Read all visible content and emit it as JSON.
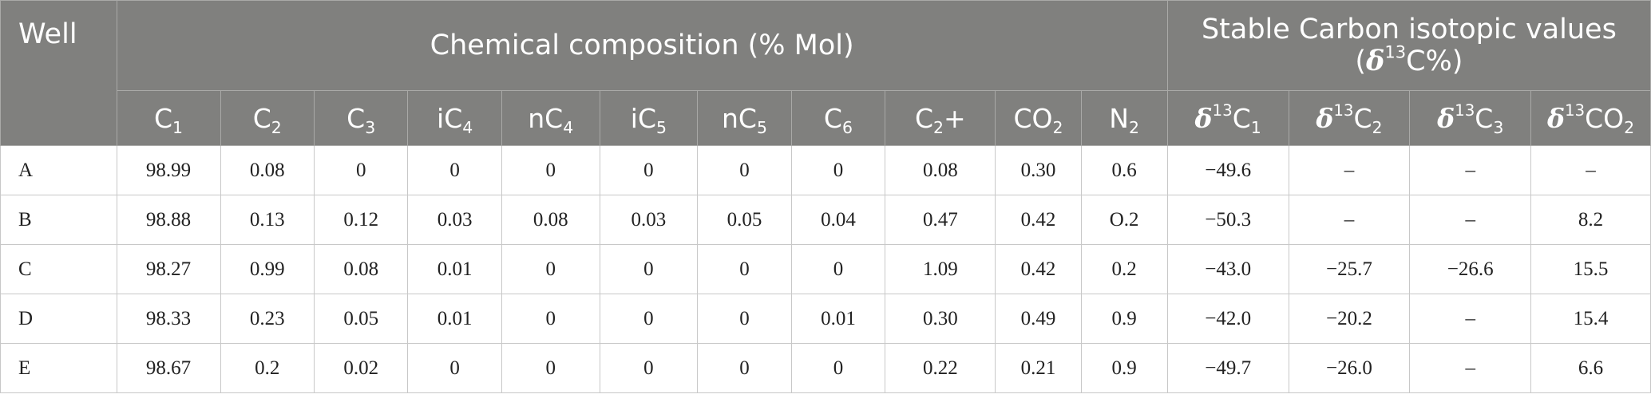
{
  "header": {
    "well": "Well",
    "chemical_group": "Chemical composition (% Mol)",
    "isotope_group_line1": "Stable Carbon isotopic values",
    "isotope_open": "(",
    "isotope_delta": "δ",
    "isotope_sup": "13",
    "isotope_rest": "C%)",
    "columns": [
      {
        "pre": "C",
        "sub": "1",
        "post": ""
      },
      {
        "pre": "C",
        "sub": "2",
        "post": ""
      },
      {
        "pre": "C",
        "sub": "3",
        "post": ""
      },
      {
        "pre": "iC",
        "sub": "4",
        "post": ""
      },
      {
        "pre": "nC",
        "sub": "4",
        "post": ""
      },
      {
        "pre": "iC",
        "sub": "5",
        "post": ""
      },
      {
        "pre": "nC",
        "sub": "5",
        "post": ""
      },
      {
        "pre": "C",
        "sub": "6",
        "post": ""
      },
      {
        "pre": "C",
        "sub": "2",
        "post": "+"
      },
      {
        "pre": "CO",
        "sub": "2",
        "post": ""
      },
      {
        "pre": "N",
        "sub": "2",
        "post": ""
      }
    ],
    "isotope_columns": [
      {
        "delta": "δ",
        "sup": "13",
        "pre": "C",
        "sub": "1"
      },
      {
        "delta": "δ",
        "sup": "13",
        "pre": "C",
        "sub": "2"
      },
      {
        "delta": "δ",
        "sup": "13",
        "pre": "C",
        "sub": "3"
      },
      {
        "delta": "δ",
        "sup": "13",
        "pre": "CO",
        "sub": "2"
      }
    ]
  },
  "rows": [
    {
      "well": "A",
      "values": [
        "98.99",
        "0.08",
        "0",
        "0",
        "0",
        "0",
        "0",
        "0",
        "0.08",
        "0.30",
        "0.6",
        "−49.6",
        "–",
        "–",
        "–"
      ]
    },
    {
      "well": "B",
      "values": [
        "98.88",
        "0.13",
        "0.12",
        "0.03",
        "0.08",
        "0.03",
        "0.05",
        "0.04",
        "0.47",
        "0.42",
        "O.2",
        "−50.3",
        "–",
        "–",
        "8.2"
      ]
    },
    {
      "well": "C",
      "values": [
        "98.27",
        "0.99",
        "0.08",
        "0.01",
        "0",
        "0",
        "0",
        "0",
        "1.09",
        "0.42",
        "0.2",
        "−43.0",
        "−25.7",
        "−26.6",
        "15.5"
      ]
    },
    {
      "well": "D",
      "values": [
        "98.33",
        "0.23",
        "0.05",
        "0.01",
        "0",
        "0",
        "0",
        "0.01",
        "0.30",
        "0.49",
        "0.9",
        "−42.0",
        "−20.2",
        "–",
        "15.4"
      ]
    },
    {
      "well": "E",
      "values": [
        "98.67",
        "0.2",
        "0.02",
        "0",
        "0",
        "0",
        "0",
        "0",
        "0.22",
        "0.21",
        "0.9",
        "−49.7",
        "−26.0",
        "–",
        "6.6"
      ]
    }
  ]
}
